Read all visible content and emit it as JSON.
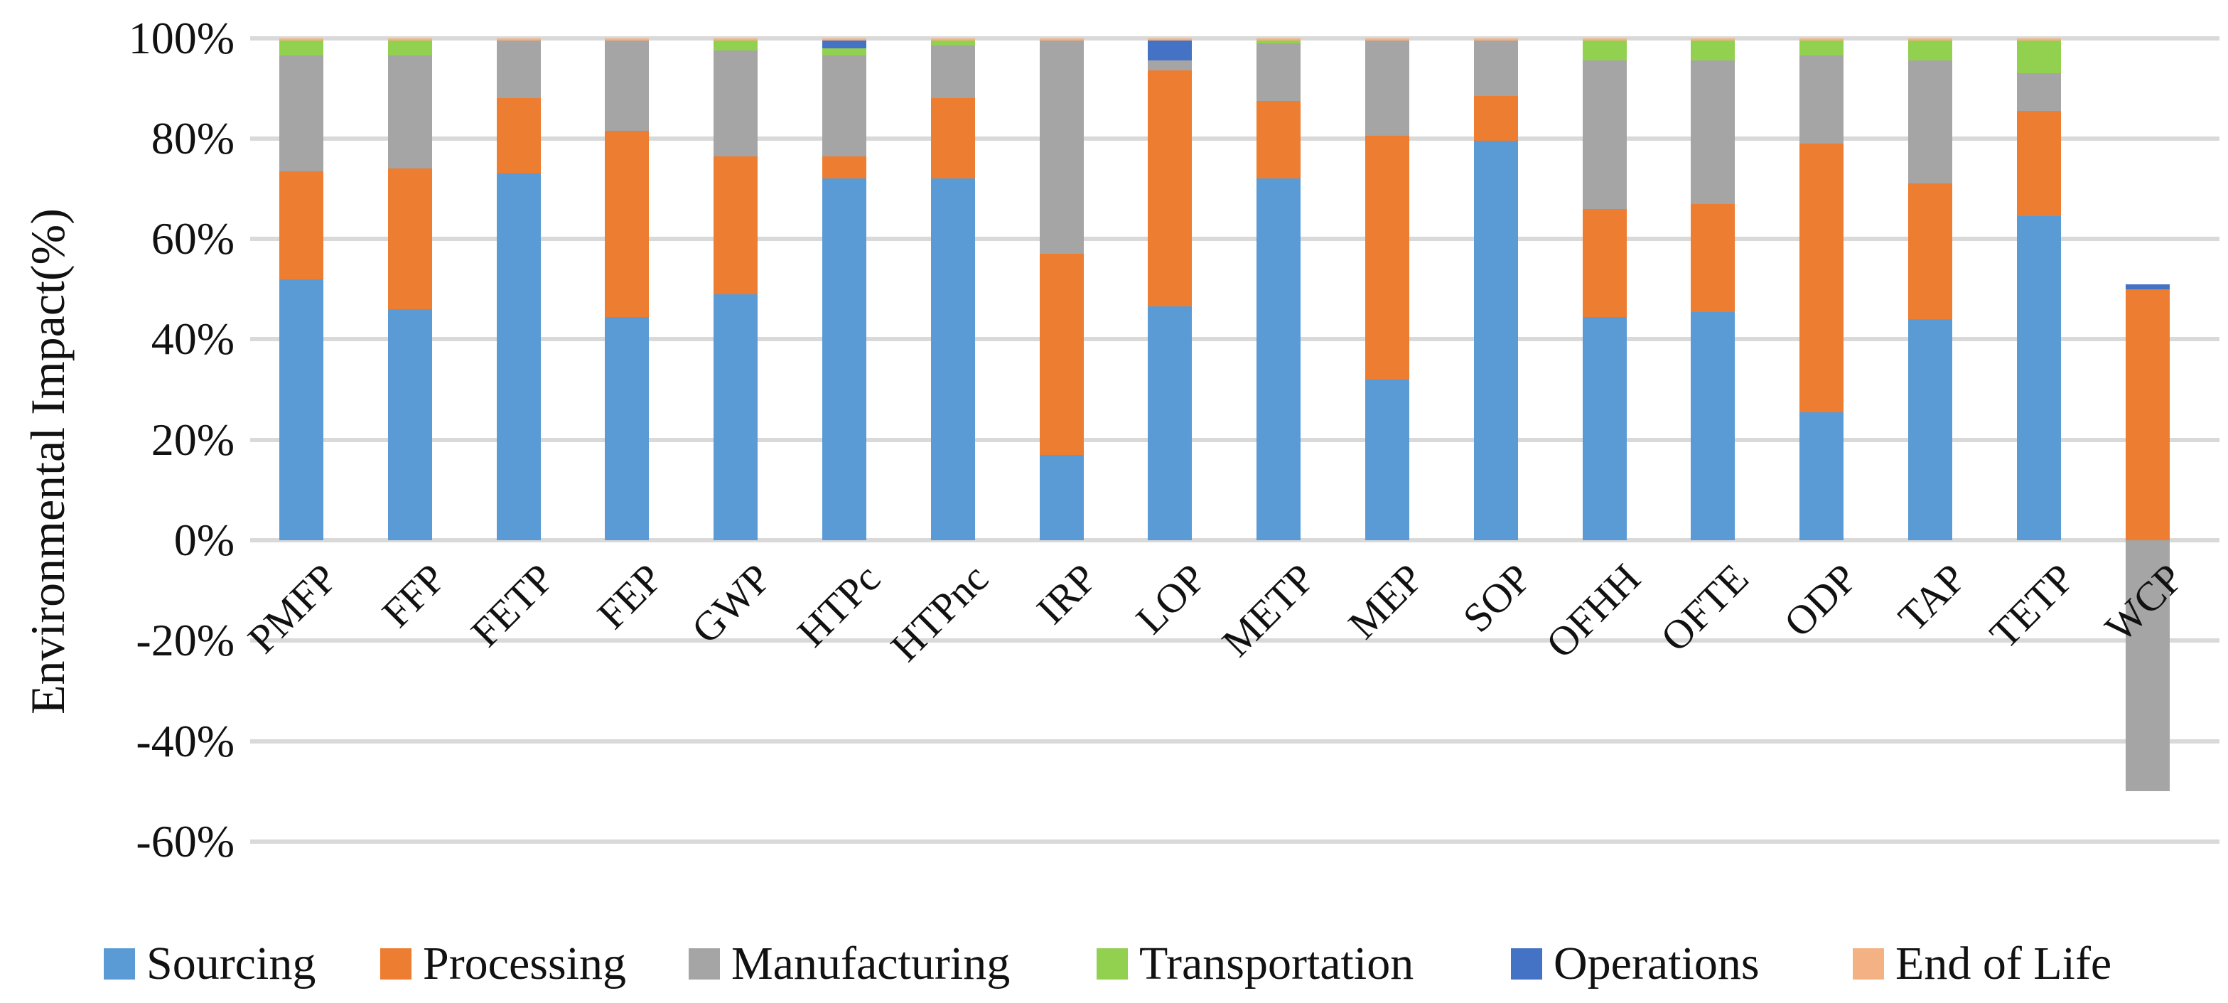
{
  "chart_data": {
    "type": "bar",
    "stacked": true,
    "orientation": "vertical",
    "title": "",
    "xlabel": "",
    "ylabel": "Environmental Impact(%)",
    "ylim": [
      -60,
      100
    ],
    "ytick_step": 20,
    "ytick_labels": [
      "100%",
      "80%",
      "60%",
      "40%",
      "20%",
      "0%",
      "-20%",
      "-40%",
      "-60%"
    ],
    "grid": true,
    "gridline_color": "#d9d9d9",
    "legend_position": "bottom",
    "categories": [
      "PMFP",
      "FFP",
      "FETP",
      "FEP",
      "GWP",
      "HTPc",
      "HTPnc",
      "IRP",
      "LOP",
      "METP",
      "MEP",
      "SOP",
      "OFHH",
      "OFTE",
      "ODP",
      "TAP",
      "TETP",
      "WCP"
    ],
    "series": [
      {
        "name": "Sourcing",
        "color": "#5B9BD5",
        "values": [
          52,
          46,
          73,
          44.5,
          49,
          72,
          72,
          17,
          46.5,
          72,
          32,
          79.5,
          44.5,
          45.5,
          25.5,
          44,
          64.5,
          0
        ]
      },
      {
        "name": "Processing",
        "color": "#ED7D31",
        "values": [
          21.5,
          28,
          15,
          37,
          27.5,
          4.5,
          16,
          40,
          47,
          15.5,
          48.5,
          9,
          21.5,
          21.5,
          53.5,
          27,
          21,
          50
        ]
      },
      {
        "name": "Manufacturing",
        "color": "#A5A5A5",
        "values": [
          23,
          22.5,
          11.5,
          18,
          21,
          20,
          10.5,
          42.5,
          2,
          11.5,
          19,
          11,
          29.5,
          28.5,
          17.5,
          24.5,
          7.5,
          -50
        ]
      },
      {
        "name": "Transportation",
        "color": "#92D050",
        "values": [
          3,
          3,
          0,
          0,
          2,
          1.5,
          1,
          0,
          0,
          0.5,
          0,
          0,
          4,
          4,
          3,
          4,
          6.5,
          0
        ]
      },
      {
        "name": "Operations",
        "color": "#4472C4",
        "values": [
          0,
          0,
          0,
          0,
          0,
          1.5,
          0,
          0,
          4,
          0,
          0,
          0,
          0,
          0,
          0,
          0,
          0,
          1
        ]
      },
      {
        "name": "End of Life",
        "color": "#F4B183",
        "values": [
          0.5,
          0.5,
          0.5,
          0.5,
          0.5,
          0.5,
          0.5,
          0.5,
          0.5,
          0.5,
          0.5,
          0.5,
          0.5,
          0.5,
          0.5,
          0.5,
          0.5,
          0
        ]
      }
    ]
  }
}
